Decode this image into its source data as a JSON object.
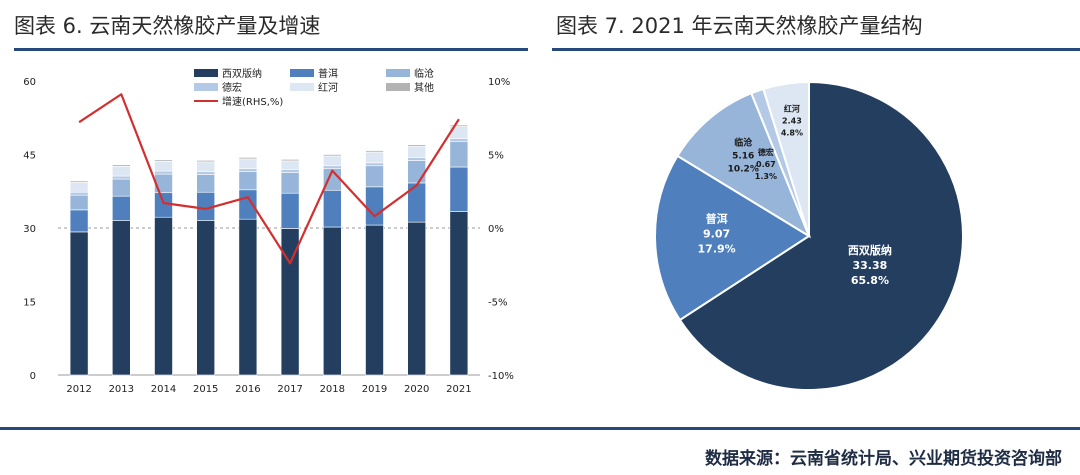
{
  "header": {
    "left_title": "图表 6.  云南天然橡胶产量及增速",
    "right_title": "图表 7. 2021 年云南天然橡胶产量结构"
  },
  "footer": {
    "source": "数据来源：云南省统计局、兴业期货投资咨询部"
  },
  "colors": {
    "rule": "#24497a",
    "xishuangbanna": "#243e60",
    "puer": "#4f80bd",
    "lincang": "#97b4d9",
    "dehong": "#b4c9e6",
    "honghe": "#dde7f3",
    "other": "#b3b3b3",
    "growth_line": "#d32f2f"
  },
  "chart_data": [
    {
      "type": "bar",
      "stacked": true,
      "categories": [
        "2012",
        "2013",
        "2014",
        "2015",
        "2016",
        "2017",
        "2018",
        "2019",
        "2020",
        "2021"
      ],
      "series": [
        {
          "name": "西双版纳",
          "color_key": "xishuangbanna",
          "values": [
            29.2,
            31.5,
            32.2,
            31.5,
            31.8,
            29.9,
            30.2,
            30.6,
            31.2,
            33.38
          ]
        },
        {
          "name": "普洱",
          "color_key": "puer",
          "values": [
            4.5,
            5.0,
            5.0,
            5.8,
            6.0,
            7.2,
            7.5,
            7.8,
            8.0,
            9.07
          ]
        },
        {
          "name": "临沧",
          "color_key": "lincang",
          "values": [
            3.0,
            3.5,
            3.8,
            3.6,
            3.7,
            4.2,
            4.4,
            4.3,
            4.6,
            5.16
          ]
        },
        {
          "name": "德宏",
          "color_key": "dehong",
          "values": [
            0.6,
            0.6,
            0.6,
            0.6,
            0.6,
            0.6,
            0.6,
            0.6,
            0.6,
            0.67
          ]
        },
        {
          "name": "红河",
          "color_key": "honghe",
          "values": [
            2.0,
            2.0,
            2.0,
            2.0,
            2.0,
            1.8,
            2.0,
            2.2,
            2.3,
            2.43
          ]
        },
        {
          "name": "其他",
          "color_key": "other",
          "values": [
            0.3,
            0.3,
            0.3,
            0.3,
            0.3,
            0.3,
            0.3,
            0.3,
            0.3,
            0.3
          ]
        }
      ],
      "line_series": {
        "name": "增速(RHS,%)",
        "axis": "right",
        "values": [
          7.2,
          9.1,
          1.7,
          1.3,
          2.1,
          -2.4,
          3.9,
          0.8,
          2.9,
          7.4
        ]
      },
      "ylim": [
        0,
        60
      ],
      "y_ticks": [
        "0",
        "15",
        "30",
        "45",
        "60"
      ],
      "y2lim": [
        -10,
        10
      ],
      "y2_ticks": [
        "-10%",
        "-5%",
        "0%",
        "5%",
        "10%"
      ],
      "reference_line": {
        "axis": "right",
        "value": 0,
        "style": "dashed"
      },
      "legend_position": "top"
    },
    {
      "type": "pie",
      "slices": [
        {
          "name": "西双版纳",
          "value": 33.38,
          "percent": "65.8%",
          "color_key": "xishuangbanna"
        },
        {
          "name": "普洱",
          "value": 9.07,
          "percent": "17.9%",
          "color_key": "puer"
        },
        {
          "name": "临沧",
          "value": 5.16,
          "percent": "10.2%",
          "color_key": "lincang"
        },
        {
          "name": "德宏",
          "value": 0.67,
          "percent": "1.3%",
          "color_key": "dehong"
        },
        {
          "name": "红河",
          "value": 2.43,
          "percent": "4.8%",
          "color_key": "honghe"
        }
      ]
    }
  ]
}
